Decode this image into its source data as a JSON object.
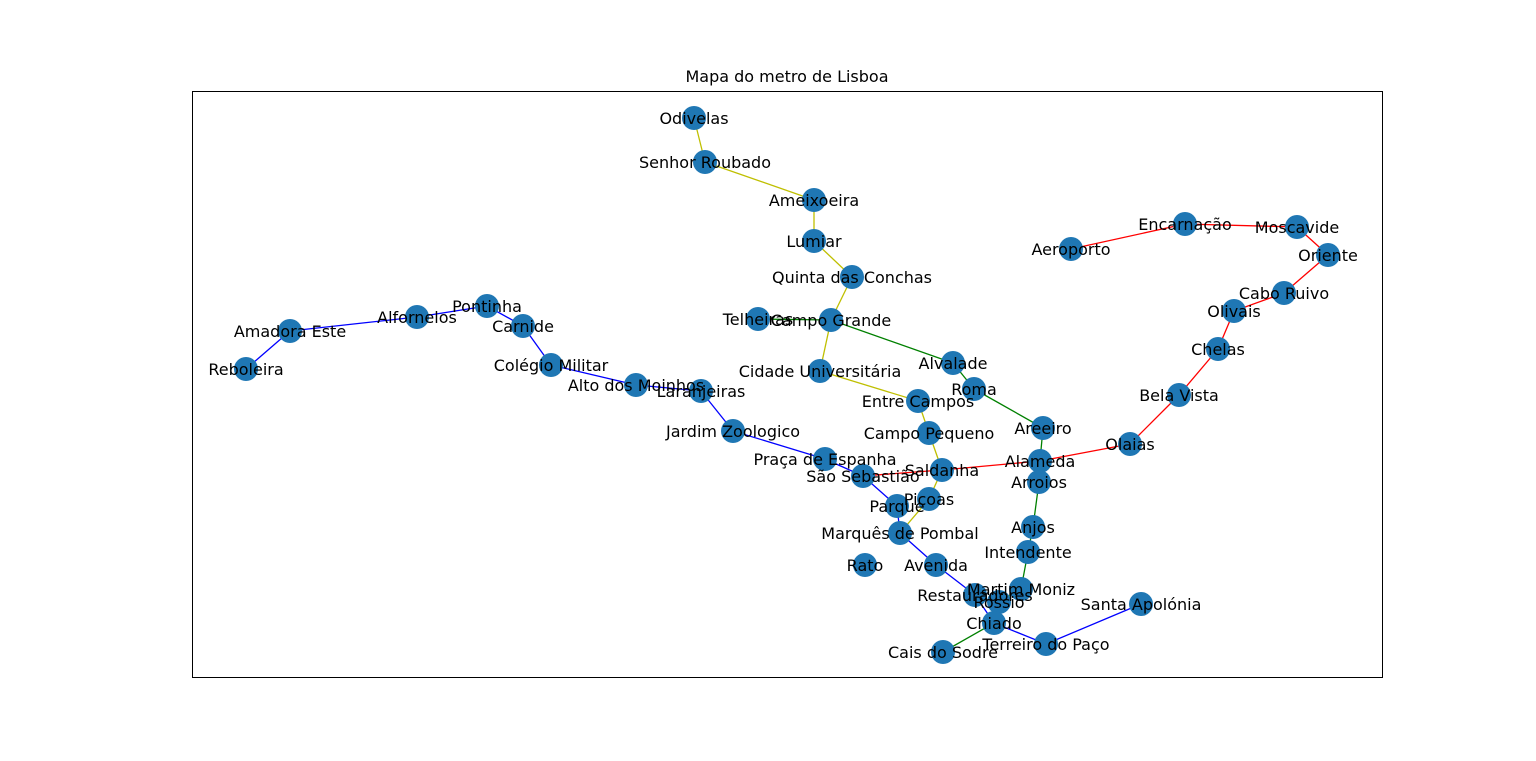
{
  "title": "Mapa do metro de Lisboa",
  "colors": {
    "node": "#1f77b4",
    "yellow_line": "#bfbf00",
    "blue_line": "#0000ff",
    "green_line": "#008000",
    "red_line": "#ff0000"
  },
  "stations": [
    {
      "id": "odivelas",
      "name": "Odivelas"
    },
    {
      "id": "senhor_roubado",
      "name": "Senhor Roubado"
    },
    {
      "id": "ameixoeira",
      "name": "Ameixoeira"
    },
    {
      "id": "lumiar",
      "name": "Lumiar"
    },
    {
      "id": "quinta_das_conchas",
      "name": "Quinta das Conchas"
    },
    {
      "id": "campo_grande",
      "name": "Campo Grande"
    },
    {
      "id": "telheiras",
      "name": "Telheiras"
    },
    {
      "id": "cidade_universitaria",
      "name": "Cidade Universitária"
    },
    {
      "id": "alvalade",
      "name": "Alvalade"
    },
    {
      "id": "roma",
      "name": "Roma"
    },
    {
      "id": "entre_campos",
      "name": "Entre Campos"
    },
    {
      "id": "campo_pequeno",
      "name": "Campo Pequeno"
    },
    {
      "id": "areeiro",
      "name": "Areeiro"
    },
    {
      "id": "saldanha",
      "name": "Saldanha"
    },
    {
      "id": "alameda",
      "name": "Alameda"
    },
    {
      "id": "arroios",
      "name": "Arroios"
    },
    {
      "id": "olaias",
      "name": "Olaias"
    },
    {
      "id": "bela_vista",
      "name": "Bela Vista"
    },
    {
      "id": "chelas",
      "name": "Chelas"
    },
    {
      "id": "olivais",
      "name": "Olivais"
    },
    {
      "id": "cabo_ruivo",
      "name": "Cabo Ruivo"
    },
    {
      "id": "oriente",
      "name": "Oriente"
    },
    {
      "id": "moscavide",
      "name": "Moscavide"
    },
    {
      "id": "encarnacao",
      "name": "Encarnação"
    },
    {
      "id": "aeroporto",
      "name": "Aeroporto"
    },
    {
      "id": "amadora_este",
      "name": "Amadora Este"
    },
    {
      "id": "reboleira",
      "name": "Reboleira"
    },
    {
      "id": "alfornelos",
      "name": "Alfornelos"
    },
    {
      "id": "pontinha",
      "name": "Pontinha"
    },
    {
      "id": "carnide",
      "name": "Carnide"
    },
    {
      "id": "colegio_militar",
      "name": "Colégio Militar"
    },
    {
      "id": "alto_dos_moinhos",
      "name": "Alto dos Moinhos"
    },
    {
      "id": "laranjeiras",
      "name": "Laranjeiras"
    },
    {
      "id": "jardim_zoologico",
      "name": "Jardim Zoologico"
    },
    {
      "id": "praca_de_espanha",
      "name": "Praça de Espanha"
    },
    {
      "id": "sao_sebastiao",
      "name": "São Sebastião"
    },
    {
      "id": "parque",
      "name": "Parque"
    },
    {
      "id": "picoas",
      "name": "Picoas"
    },
    {
      "id": "marques_de_pombal",
      "name": "Marquês de Pombal"
    },
    {
      "id": "rato",
      "name": "Rato"
    },
    {
      "id": "avenida",
      "name": "Avenida"
    },
    {
      "id": "anjos",
      "name": "Anjos"
    },
    {
      "id": "intendente",
      "name": "Intendente"
    },
    {
      "id": "martim_moniz",
      "name": "Martim Moniz"
    },
    {
      "id": "restauradores",
      "name": "Restauradores"
    },
    {
      "id": "rossio",
      "name": "Rossio"
    },
    {
      "id": "baixa_chiado",
      "name": "Chiado"
    },
    {
      "id": "cais_do_sodre",
      "name": "Cais do Sodre"
    },
    {
      "id": "terreiro_do_paco",
      "name": "Terreiro do Paço"
    },
    {
      "id": "santa_apolonia",
      "name": "Santa Apolónia"
    }
  ],
  "lines": [
    {
      "color": "yellow",
      "stations": [
        "odivelas",
        "senhor_roubado",
        "ameixoeira",
        "lumiar",
        "quinta_das_conchas",
        "campo_grande",
        "cidade_universitaria",
        "entre_campos",
        "campo_pequeno",
        "saldanha",
        "picoas",
        "marques_de_pombal"
      ]
    },
    {
      "color": "blue",
      "stations": [
        "reboleira",
        "amadora_este",
        "alfornelos",
        "pontinha",
        "carnide",
        "colegio_militar",
        "alto_dos_moinhos",
        "laranjeiras",
        "jardim_zoologico",
        "praca_de_espanha",
        "sao_sebastiao",
        "parque",
        "marques_de_pombal",
        "avenida",
        "restauradores",
        "baixa_chiado",
        "terreiro_do_paco",
        "santa_apolonia"
      ]
    },
    {
      "color": "green",
      "stations": [
        "telheiras",
        "campo_grande",
        "alvalade",
        "roma",
        "areeiro",
        "alameda",
        "arroios",
        "anjos",
        "intendente",
        "martim_moniz",
        "rossio",
        "baixa_chiado",
        "cais_do_sodre"
      ]
    },
    {
      "color": "red",
      "stations": [
        "aeroporto",
        "encarnacao",
        "moscavide",
        "oriente",
        "cabo_ruivo",
        "olivais",
        "chelas",
        "bela_vista",
        "olaias",
        "alameda",
        "saldanha",
        "sao_sebastiao"
      ]
    }
  ]
}
